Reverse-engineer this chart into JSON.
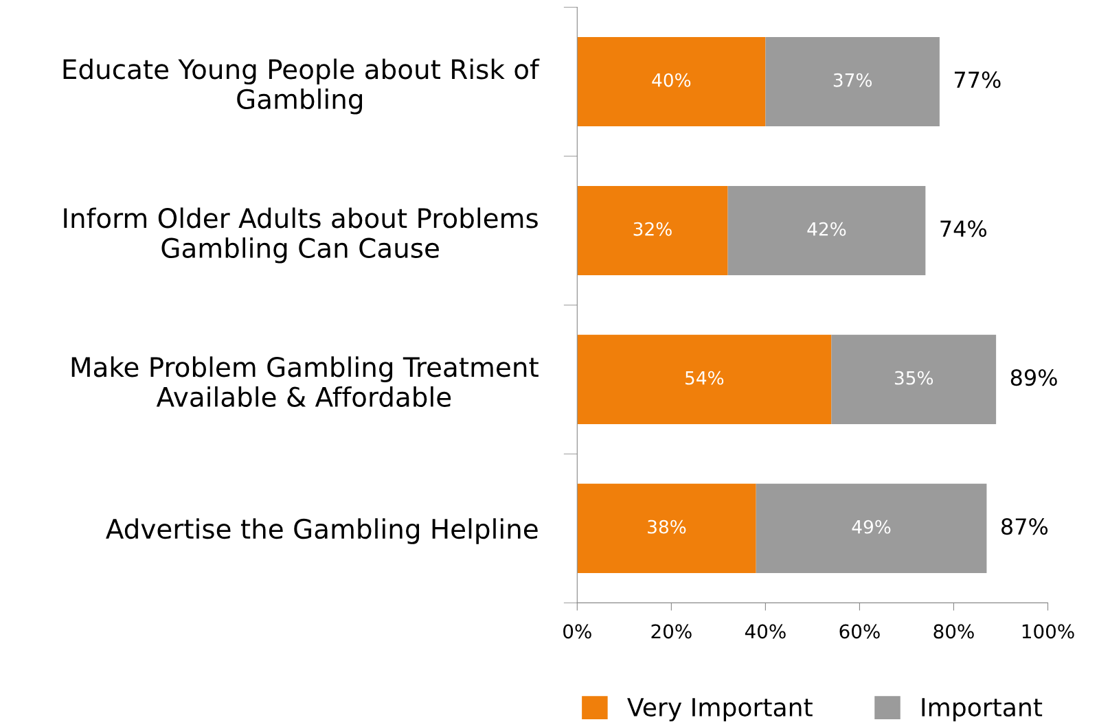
{
  "chart_data": {
    "type": "bar",
    "orientation": "horizontal",
    "stacked": true,
    "categories": [
      "Educate Young People about Risk of\nGambling",
      "Inform Older Adults about Problems\nGambling Can Cause",
      "Make Problem Gambling Treatment\nAvailable & Affordable",
      "Advertise the Gambling Helpline"
    ],
    "series": [
      {
        "name": "Very Important",
        "color": "#f07f0b",
        "values": [
          40,
          32,
          54,
          38
        ],
        "value_labels": [
          "40%",
          "32%",
          "54%",
          "38%"
        ]
      },
      {
        "name": "Important",
        "color": "#9b9b9b",
        "values": [
          37,
          42,
          35,
          49
        ],
        "value_labels": [
          "37%",
          "42%",
          "35%",
          "49%"
        ]
      }
    ],
    "totals": [
      "77%",
      "74%",
      "89%",
      "87%"
    ],
    "xlim": [
      0,
      100
    ],
    "xticks": [
      {
        "value": 0,
        "label": "0%"
      },
      {
        "value": 20,
        "label": "20%"
      },
      {
        "value": 40,
        "label": "40%"
      },
      {
        "value": 60,
        "label": "60%"
      },
      {
        "value": 80,
        "label": "80%"
      },
      {
        "value": 100,
        "label": "100%"
      }
    ],
    "legend": "bottom",
    "grid": false
  }
}
